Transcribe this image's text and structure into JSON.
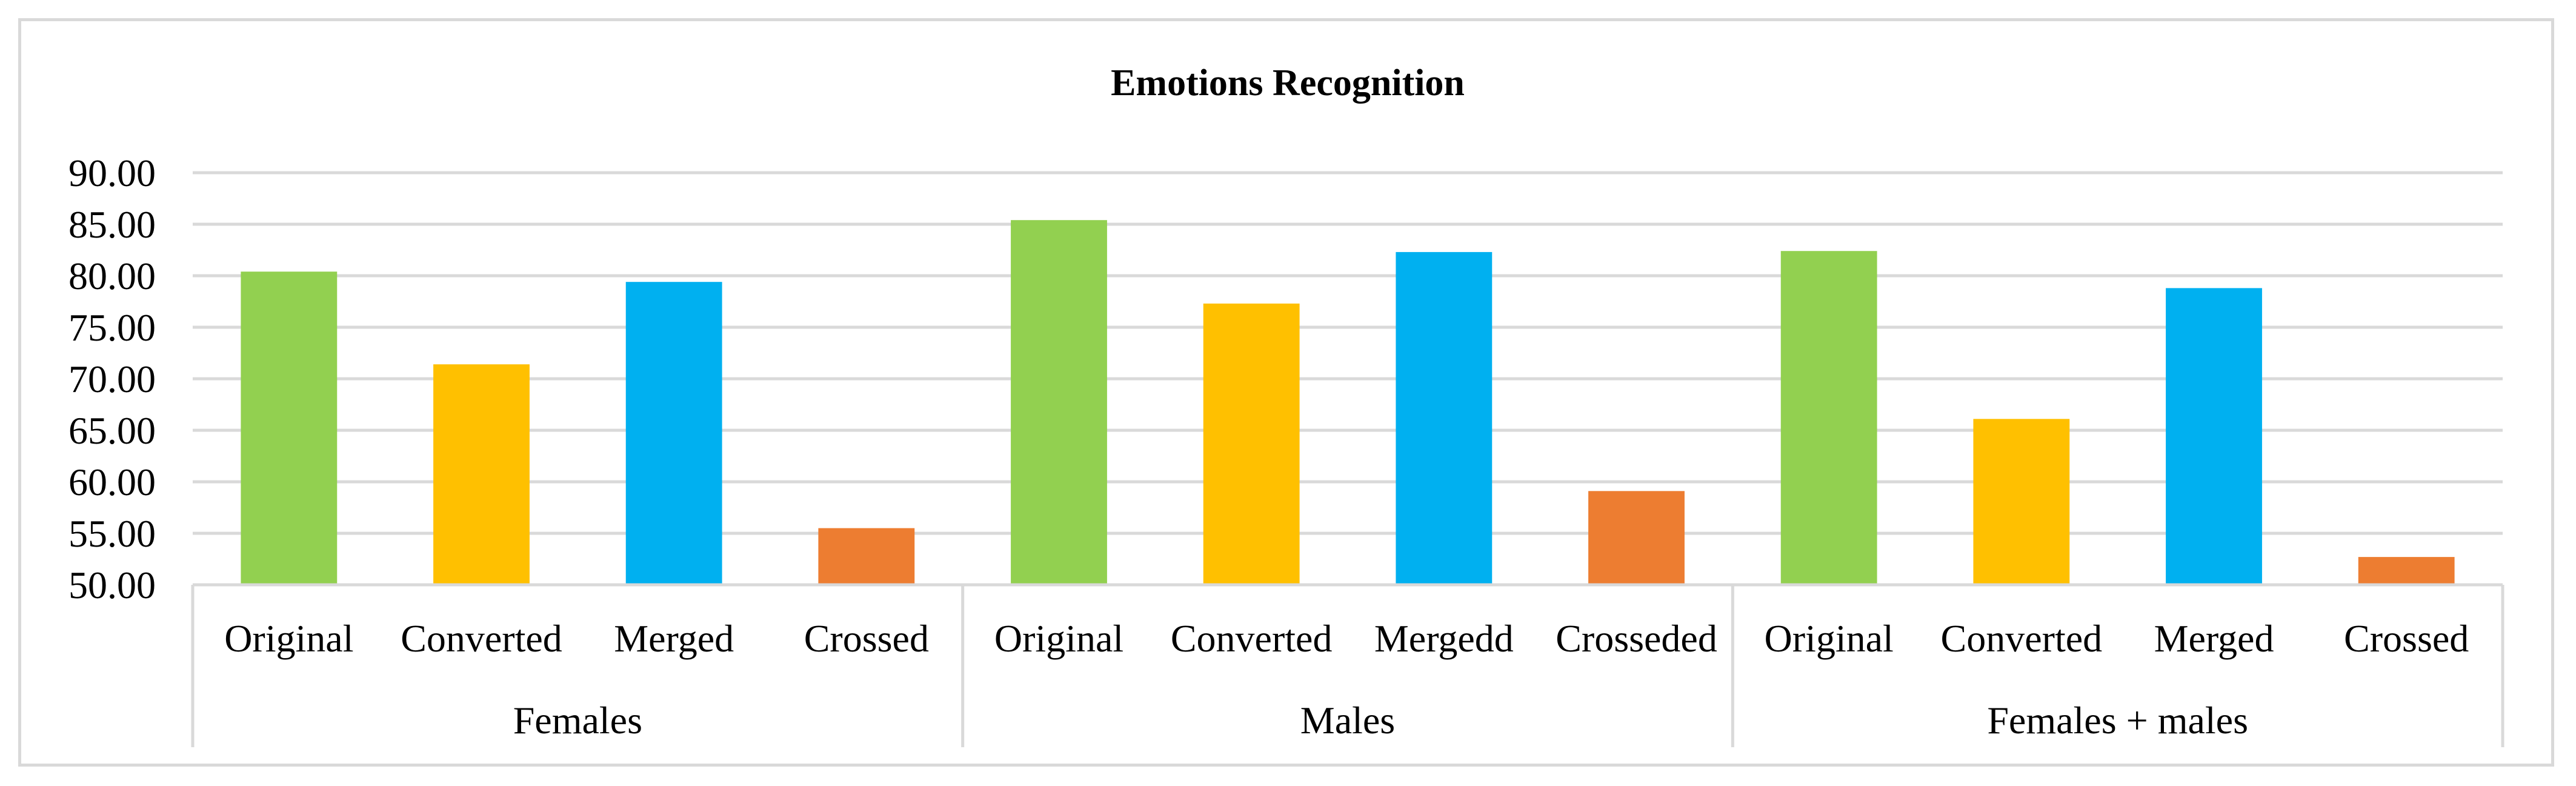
{
  "chart_data": {
    "type": "bar",
    "title": "Emotions Recognition",
    "xlabel": "",
    "ylabel": "",
    "ylim": [
      50,
      90
    ],
    "yticks": [
      "90.00",
      "85.00",
      "80.00",
      "75.00",
      "70.00",
      "65.00",
      "60.00",
      "55.00",
      "50.00"
    ],
    "grid": true,
    "legend": "none",
    "groups": [
      {
        "name": "Females",
        "categories": [
          "Original",
          "Converted",
          "Merged",
          "Crossed"
        ],
        "values": [
          80.4,
          71.4,
          79.4,
          55.5
        ]
      },
      {
        "name": "Males",
        "categories": [
          "Original",
          "Converted",
          "Mergedd",
          "Crosseded"
        ],
        "values": [
          85.4,
          77.3,
          82.3,
          59.1
        ]
      },
      {
        "name": "Females + males",
        "categories": [
          "Original",
          "Converted",
          "Merged",
          "Crossed"
        ],
        "values": [
          82.4,
          66.1,
          78.8,
          52.7
        ]
      }
    ],
    "bar_colors": [
      "#92d050",
      "#ffc000",
      "#00b0f0",
      "#ed7d31"
    ],
    "grid_color": "#d9d9d9",
    "axis_color": "#d9d9d9"
  }
}
